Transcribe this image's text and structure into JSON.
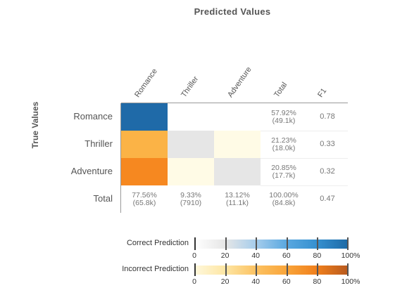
{
  "chart_data": {
    "type": "heatmap",
    "title": "Predicted Values",
    "ylabel": "True Values",
    "columns": [
      "Romance",
      "Thriller",
      "Adventure",
      "Total",
      "F1"
    ],
    "rows": [
      "Romance",
      "Thriller",
      "Adventure",
      "Total"
    ],
    "matrix": [
      [
        1.0,
        0.0,
        0.0
      ],
      [
        0.6,
        0.2,
        0.1
      ],
      [
        0.8,
        0.05,
        0.2
      ]
    ],
    "row_totals": [
      {
        "pct": "57.92%",
        "count": "(49.1k)"
      },
      {
        "pct": "21.23%",
        "count": "(18.0k)"
      },
      {
        "pct": "20.85%",
        "count": "(17.7k)"
      }
    ],
    "col_totals": [
      {
        "pct": "77.56%",
        "count": "(65.8k)"
      },
      {
        "pct": "9.33%",
        "count": "(7910)"
      },
      {
        "pct": "13.12%",
        "count": "(11.1k)"
      }
    ],
    "grand_total": {
      "pct": "100.00%",
      "count": "(84.8k)"
    },
    "f1": [
      "0.78",
      "0.33",
      "0.32",
      "0.47"
    ],
    "legend": {
      "correct_label": "Correct Prediction",
      "incorrect_label": "Incorrect Prediction",
      "ticks": [
        "0",
        "20",
        "40",
        "60",
        "80",
        "100%"
      ],
      "correct_colors": [
        "#ffffff",
        "#e9e9e9",
        "#a9cdea",
        "#5da9e0",
        "#3b90d0",
        "#1f6fb0"
      ],
      "incorrect_colors": [
        "#fff8e1",
        "#fde9b3",
        "#fcc766",
        "#f8a132",
        "#f07d1a",
        "#b8561a"
      ]
    }
  }
}
